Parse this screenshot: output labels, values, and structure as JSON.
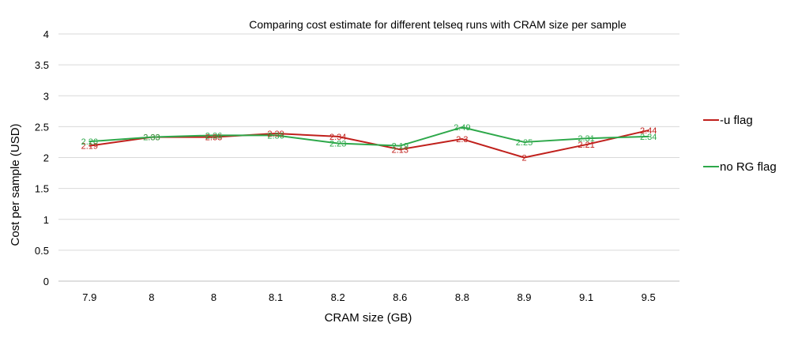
{
  "chart_data": {
    "type": "line",
    "title": "Comparing cost estimate for different telseq runs with CRAM size per sample",
    "xlabel": "CRAM size (GB)",
    "ylabel": "Cost per sample (USD)",
    "categories": [
      "7.9",
      "8",
      "8",
      "8.1",
      "8.2",
      "8.6",
      "8.8",
      "8.9",
      "9.1",
      "9.5"
    ],
    "ylim": [
      0,
      4
    ],
    "yticks": [
      "0",
      "0.5",
      "1",
      "1.5",
      "2",
      "2.5",
      "3",
      "3.5",
      "4"
    ],
    "grid": true,
    "legend_position": "right",
    "series": [
      {
        "name": "-u flag",
        "color": "#C0201C",
        "values": [
          2.19,
          2.33,
          2.33,
          2.39,
          2.34,
          2.13,
          2.3,
          2,
          2.21,
          2.44
        ],
        "labels": [
          "2.19",
          "2.33",
          "2.33",
          "2.39",
          "2.34",
          "2.13",
          "2.3",
          "2",
          "2.21",
          "2.44"
        ]
      },
      {
        "name": "no RG flag",
        "color": "#2DA84A",
        "values": [
          2.26,
          2.33,
          2.36,
          2.36,
          2.23,
          2.19,
          2.49,
          2.25,
          2.31,
          2.34
        ],
        "labels": [
          "2.26",
          "2.33",
          "2.36",
          "2.36",
          "2.23",
          "2.19",
          "2.49",
          "2.25",
          "2.31",
          "2.34"
        ]
      }
    ]
  }
}
